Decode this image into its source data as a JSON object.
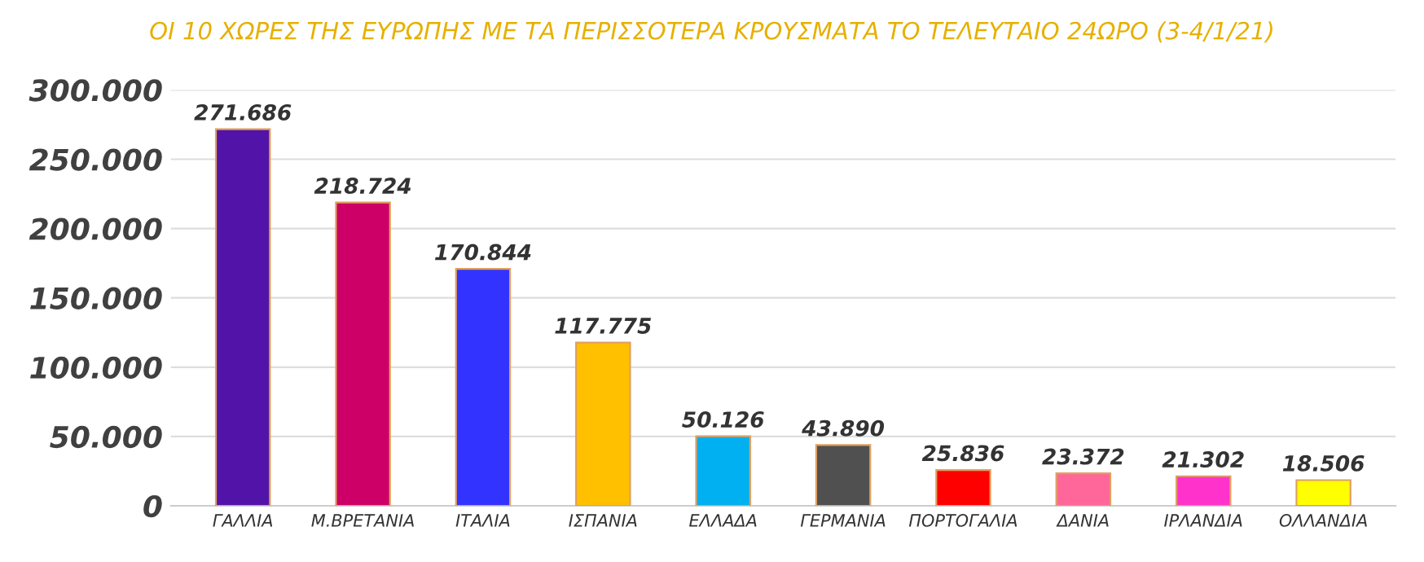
{
  "chart_data": {
    "type": "bar",
    "title": "ΟΙ 10 ΧΩΡΕΣ ΤΗΣ ΕΥΡΩΠΗΣ ΜΕ ΤΑ ΠΕΡΙΣΣΟΤΕΡΑ ΚΡΟΥΣΜΑΤΑ ΤΟ ΤΕΛΕΥΤΑΙΟ 24ΩΡΟ (3-4/1/21)",
    "categories": [
      "ΓΑΛΛΙΑ",
      "Μ.ΒΡΕΤΑΝΙΑ",
      "ΙΤΑΛΙΑ",
      "ΙΣΠΑΝΙΑ",
      "ΕΛΛΑΔΑ",
      "ΓΕΡΜΑΝΙΑ",
      "ΠΟΡΤΟΓΑΛΙΑ",
      "ΔΑΝΙΑ",
      "ΙΡΛΑΝΔΙΑ",
      "ΟΛΛΑΝΔΙΑ"
    ],
    "values": [
      271686,
      218724,
      170844,
      117775,
      50126,
      43890,
      25836,
      23372,
      21302,
      18506
    ],
    "value_labels": [
      "271.686",
      "218.724",
      "170.844",
      "117.775",
      "50.126",
      "43.890",
      "25.836",
      "23.372",
      "21.302",
      "18.506"
    ],
    "colors": [
      "#5214a8",
      "#cc0066",
      "#3333ff",
      "#ffc000",
      "#00b0f0",
      "#505050",
      "#ff0000",
      "#ff6699",
      "#ff33cc",
      "#ffff00"
    ],
    "ylim": [
      0,
      300000
    ],
    "yticks": [
      {
        "value": 0,
        "label": "0"
      },
      {
        "value": 50000,
        "label": "50.000"
      },
      {
        "value": 100000,
        "label": "100.000"
      },
      {
        "value": 150000,
        "label": "150.000"
      },
      {
        "value": 200000,
        "label": "200.000"
      },
      {
        "value": 250000,
        "label": "250.000"
      },
      {
        "value": 300000,
        "label": "300.000"
      }
    ],
    "grid": "y"
  }
}
